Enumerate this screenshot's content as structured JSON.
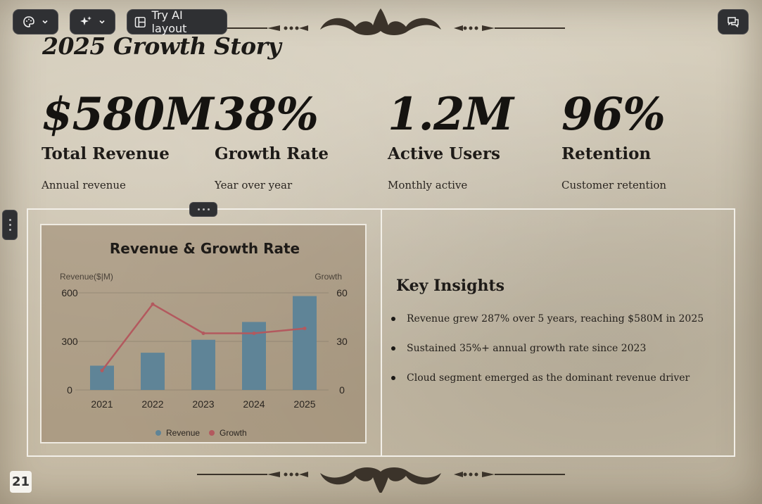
{
  "toolbar": {
    "layout_label": "Try AI layout",
    "icons": [
      "palette-icon",
      "sparkle-icon",
      "layout-icon",
      "comment-icon",
      "chevron-down-icon"
    ]
  },
  "slide": {
    "title": "2025 Growth Story",
    "page_number": "21",
    "stats": [
      {
        "value": "$580M",
        "label": "Total Revenue",
        "sub": "Annual revenue"
      },
      {
        "value": "38%",
        "label": "Growth Rate",
        "sub": "Year over year"
      },
      {
        "value": "1.2M",
        "label": "Active Users",
        "sub": "Monthly active"
      },
      {
        "value": "96%",
        "label": "Retention",
        "sub": "Customer retention"
      }
    ],
    "insights": {
      "title": "Key Insights",
      "items": [
        "Revenue grew 287% over 5 years, reaching $580M in 2025",
        "Sustained 35%+ annual growth rate since 2023",
        "Cloud segment emerged as the dominant revenue driver"
      ]
    }
  },
  "chart_data": {
    "type": "bar",
    "title": "Revenue & Growth Rate",
    "ylabel": "Revenue($|M)",
    "y2label": "Growth",
    "categories": [
      "2021",
      "2022",
      "2023",
      "2024",
      "2025"
    ],
    "ylim": [
      0,
      600
    ],
    "y2lim": [
      0,
      60
    ],
    "yticks": [
      "0",
      "300",
      "600"
    ],
    "y2ticks": [
      "0",
      "30",
      "60"
    ],
    "legend_position": "bottom",
    "grid": true,
    "series": [
      {
        "name": "Revenue",
        "type": "bar",
        "axis": "left",
        "color": "#5f8497",
        "values": [
          150,
          230,
          310,
          420,
          580
        ]
      },
      {
        "name": "Growth",
        "type": "line",
        "axis": "right",
        "color": "#b3595e",
        "values": [
          12,
          53,
          35,
          35,
          38
        ]
      }
    ]
  },
  "colors": {
    "toolbar_bg": "#2f3033",
    "text_dark": "#1c1a17",
    "frame_border": "#f2efe8"
  }
}
